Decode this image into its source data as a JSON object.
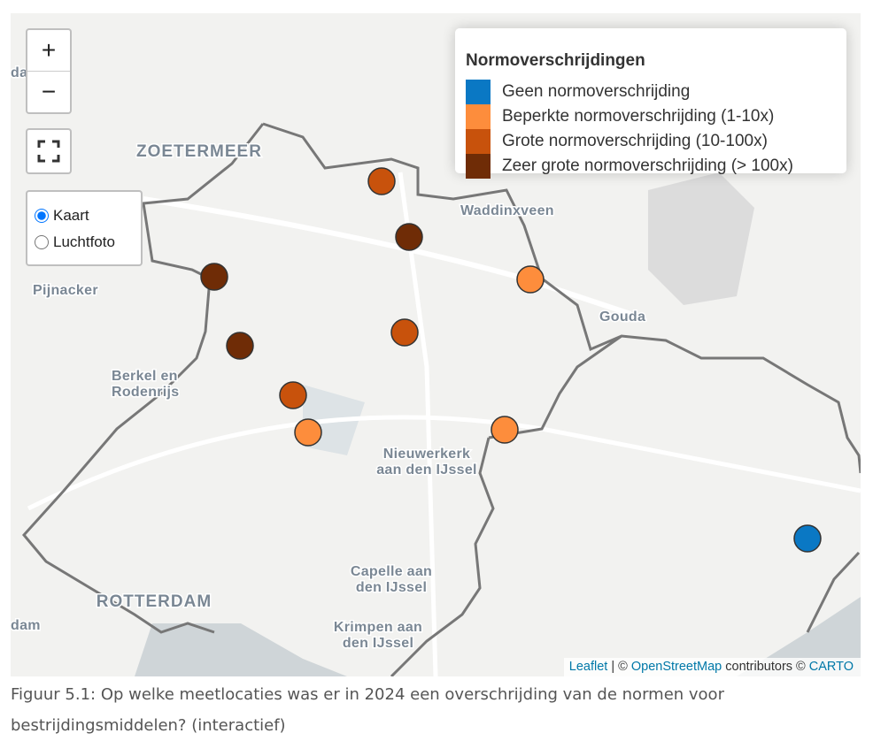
{
  "map": {
    "controls": {
      "zoom_in": "+",
      "zoom_out": "−"
    },
    "layers": {
      "options": [
        "Kaart",
        "Luchtfoto"
      ],
      "selected": 0
    },
    "legend": {
      "title": "Normoverschrijdingen",
      "items": [
        {
          "label": "Geen normoverschrijding",
          "color": "#0a78c4"
        },
        {
          "label": "Beperkte normoverschrijding (1-10x)",
          "color": "#fd8d3c"
        },
        {
          "label": "Grote normoverschrijding (10-100x)",
          "color": "#c8520c"
        },
        {
          "label": "Zeer grote normoverschrijding (> 100x)",
          "color": "#6f2c06"
        }
      ]
    },
    "places": [
      {
        "lines": [
          "ZOETERMEER"
        ]
      },
      {
        "lines": [
          "Waddinxveen"
        ]
      },
      {
        "lines": [
          "Pijnacker"
        ]
      },
      {
        "lines": [
          "Gouda"
        ]
      },
      {
        "lines": [
          "Berkel en",
          "Rodenrijs"
        ]
      },
      {
        "lines": [
          "Nieuwerkerk",
          "aan den IJssel"
        ]
      },
      {
        "lines": [
          "Capelle aan",
          "den IJssel"
        ]
      },
      {
        "lines": [
          "ROTTERDAM"
        ]
      },
      {
        "lines": [
          "Krimpen aan",
          "den IJssel"
        ]
      },
      {
        "lines": [
          "da"
        ]
      },
      {
        "lines": [
          "dam"
        ]
      }
    ],
    "attribution": {
      "leaflet": "Leaflet",
      "sep": " | © ",
      "osm": "OpenStreetMap",
      "mid": " contributors © ",
      "carto": "CARTO"
    }
  },
  "caption": "Figuur 5.1: Op welke meetlocaties was er in 2024 een overschrijding van de normen voor bestrijdingsmiddelen? (interactief)"
}
